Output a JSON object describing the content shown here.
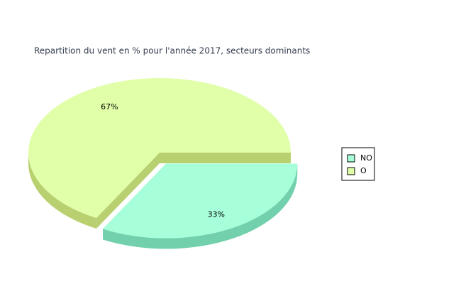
{
  "chart_data": {
    "type": "pie",
    "title": "Repartition du vent en % pour l'année 2017, secteurs dominants",
    "categories": [
      "NO",
      "O"
    ],
    "values": [
      33,
      67
    ],
    "value_labels": [
      "33%",
      "67%"
    ],
    "colors": [
      "#a6ffd8",
      "#e0ffa8"
    ],
    "side_colors": [
      "#72d0ac",
      "#b8d070"
    ],
    "legend": "right"
  }
}
